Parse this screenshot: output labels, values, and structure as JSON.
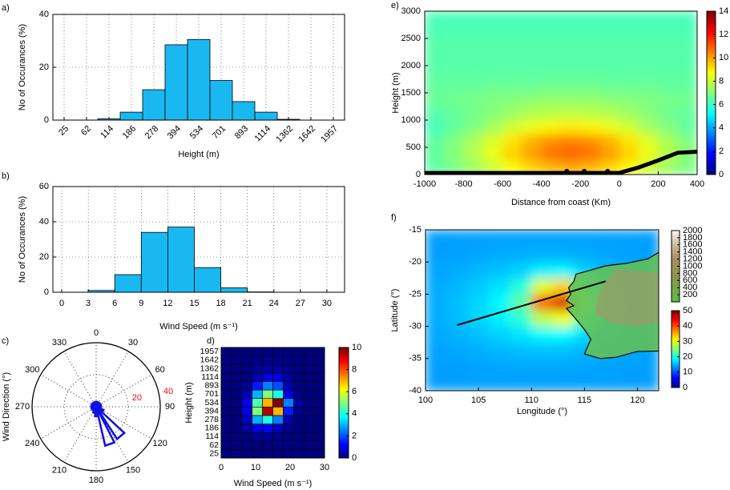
{
  "chart_data": [
    {
      "type": "bar",
      "label": "a)",
      "ylabel": "No of Occurances (%)",
      "xlabel": "Height (m)",
      "categories": [
        "25",
        "62",
        "114",
        "186",
        "278",
        "394",
        "534",
        "701",
        "893",
        "1114",
        "1362",
        "1642",
        "1957"
      ],
      "values": [
        0,
        0,
        0.5,
        3,
        11.5,
        28.5,
        30.5,
        15,
        7,
        3,
        0.3,
        0,
        0
      ],
      "ylim": [
        0,
        40
      ],
      "yticks": [
        0,
        20,
        40
      ],
      "grid": true,
      "color": "#1ab8f0"
    },
    {
      "type": "histogram",
      "label": "b)",
      "ylabel": "No of Occurances (%)",
      "xlabel": "Wind Speed (m s⁻¹)",
      "bins": [
        0,
        3,
        6,
        9,
        12,
        15,
        18,
        21,
        24,
        27,
        30
      ],
      "values": [
        0,
        1,
        10,
        34,
        37,
        14,
        2.5,
        0.2,
        0,
        0
      ],
      "xlim": [
        -1,
        32
      ],
      "xticks": [
        0,
        3,
        6,
        9,
        12,
        15,
        18,
        21,
        24,
        27,
        30
      ],
      "ylim": [
        0,
        60
      ],
      "yticks": [
        0,
        20,
        40,
        60
      ],
      "grid": true,
      "color": "#1ab8f0"
    },
    {
      "type": "polar",
      "label": "c)",
      "ylabel": "Wind Direction (°)",
      "directions": [
        0,
        20,
        40,
        60,
        80,
        100,
        120,
        140,
        160,
        180,
        200,
        220,
        240,
        260,
        280,
        300,
        320,
        340
      ],
      "values": [
        3,
        3,
        3,
        3,
        3,
        3,
        5,
        24,
        25,
        6,
        4,
        3,
        3,
        3,
        3,
        3,
        3,
        3
      ],
      "theta_ticks": [
        0,
        30,
        60,
        90,
        120,
        150,
        180,
        210,
        240,
        270,
        300,
        330
      ],
      "rlim": [
        0,
        40
      ],
      "rticks": [
        20,
        40
      ],
      "rtick_color": "#e01010",
      "color": "#1010e0"
    },
    {
      "type": "heatmap",
      "label": "d)",
      "xlabel": "Wind Speed (m s⁻¹)",
      "ylabel": "Height (m)",
      "x_bins": [
        0,
        3,
        6,
        9,
        12,
        15,
        18,
        21,
        24,
        27,
        30
      ],
      "y_categories": [
        "25",
        "62",
        "114",
        "186",
        "278",
        "394",
        "534",
        "701",
        "893",
        "1114",
        "1362",
        "1642",
        "1957"
      ],
      "z": [
        [
          0,
          0,
          0,
          0,
          0,
          0,
          0,
          0,
          0,
          0
        ],
        [
          0,
          0,
          0,
          0,
          0,
          0,
          0,
          0,
          0,
          0
        ],
        [
          0,
          0,
          0,
          0.2,
          0.2,
          0.1,
          0,
          0,
          0,
          0
        ],
        [
          0,
          0,
          0.3,
          1,
          1.2,
          0.6,
          0.1,
          0,
          0,
          0
        ],
        [
          0,
          0,
          0.6,
          3,
          4,
          2.5,
          0.5,
          0,
          0,
          0
        ],
        [
          0,
          0,
          1,
          5,
          9.5,
          7,
          1.5,
          0.2,
          0,
          0
        ],
        [
          0,
          0,
          1,
          4.5,
          7,
          10,
          2.5,
          0.3,
          0,
          0
        ],
        [
          0,
          0,
          0.5,
          3,
          5,
          4,
          1,
          0.1,
          0,
          0
        ],
        [
          0,
          0,
          0.2,
          1.5,
          2.5,
          2,
          0.5,
          0,
          0,
          0
        ],
        [
          0,
          0,
          0,
          0.5,
          1,
          1,
          0.3,
          0,
          0,
          0
        ],
        [
          0,
          0,
          0,
          0.2,
          0.3,
          0.3,
          0.1,
          0,
          0,
          0
        ],
        [
          0,
          0,
          0,
          0,
          0.1,
          0.1,
          0,
          0,
          0,
          0
        ],
        [
          0,
          0,
          0,
          0,
          0,
          0,
          0,
          0,
          0,
          0
        ]
      ],
      "xlim": [
        0,
        30
      ],
      "xticks": [
        0,
        10,
        20,
        30
      ],
      "clim": [
        0,
        10
      ],
      "cticks": [
        0,
        2,
        4,
        6,
        8,
        10
      ]
    },
    {
      "type": "contour",
      "label": "e)",
      "xlabel": "Distance from coast (Km)",
      "ylabel": "Height (m)",
      "x_edges": [
        -1000,
        -900,
        -800,
        -700,
        -600,
        -500,
        -400,
        -300,
        -200,
        -100,
        0,
        100,
        200,
        300,
        400
      ],
      "y_edges": [
        0,
        250,
        500,
        750,
        1000,
        1250,
        1500,
        1750,
        2000,
        2250,
        2500,
        2750,
        3000
      ],
      "z": [
        [
          6.5,
          6.9,
          7.4,
          8.0,
          8.7,
          9.3,
          9.7,
          9.9,
          9.7,
          9.3,
          8.7,
          8.0,
          7.4,
          6.9
        ],
        [
          6.6,
          7.1,
          7.7,
          8.5,
          9.4,
          10.1,
          10.7,
          10.9,
          10.7,
          10.1,
          9.4,
          8.5,
          7.7,
          7.1
        ],
        [
          6.5,
          7.0,
          7.6,
          8.3,
          9.1,
          9.8,
          10.3,
          10.5,
          10.3,
          9.8,
          9.1,
          8.3,
          7.6,
          7.0
        ],
        [
          6.2,
          6.6,
          7.0,
          7.5,
          8.1,
          8.5,
          8.9,
          9.0,
          8.9,
          8.5,
          8.1,
          7.5,
          7.0,
          6.6
        ],
        [
          6.4,
          6.6,
          6.8,
          7.1,
          7.4,
          7.7,
          7.8,
          7.9,
          7.8,
          7.7,
          7.4,
          7.1,
          6.8,
          6.6
        ],
        [
          6.7,
          6.8,
          6.9,
          7.0,
          7.1,
          7.2,
          7.3,
          7.3,
          7.3,
          7.2,
          7.1,
          7.0,
          6.9,
          6.8
        ],
        [
          6.6,
          6.6,
          6.6,
          6.7,
          6.7,
          6.7,
          6.8,
          6.8,
          6.8,
          6.7,
          6.7,
          6.7,
          6.6,
          6.6
        ],
        [
          6.5,
          6.5,
          6.5,
          6.5,
          6.5,
          6.5,
          6.5,
          6.5,
          6.5,
          6.5,
          6.5,
          6.5,
          6.5,
          6.5
        ],
        [
          6.4,
          6.4,
          6.4,
          6.4,
          6.4,
          6.4,
          6.4,
          6.4,
          6.4,
          6.4,
          6.4,
          6.4,
          6.4,
          6.4
        ],
        [
          6.4,
          6.4,
          6.4,
          6.4,
          6.4,
          6.4,
          6.4,
          6.4,
          6.4,
          6.4,
          6.4,
          6.4,
          6.4,
          6.4
        ],
        [
          6.3,
          6.3,
          6.3,
          6.3,
          6.3,
          6.3,
          6.3,
          6.3,
          6.3,
          6.3,
          6.3,
          6.3,
          6.3,
          6.3
        ],
        [
          6.2,
          6.2,
          6.2,
          6.2,
          6.2,
          6.2,
          6.2,
          6.2,
          6.2,
          6.2,
          6.2,
          6.2,
          6.2,
          6.2
        ]
      ],
      "xlim": [
        -1000,
        400
      ],
      "xticks": [
        -1000,
        -800,
        -600,
        -400,
        -200,
        0,
        200,
        400
      ],
      "ylim": [
        0,
        3000
      ],
      "yticks": [
        0,
        500,
        1000,
        1500,
        2000,
        2500,
        3000
      ],
      "clim": [
        0,
        14
      ],
      "cticks": [
        0,
        2,
        4,
        6,
        8,
        10,
        12,
        14
      ],
      "terrain": {
        "x": [
          -1000,
          0,
          100,
          200,
          300,
          400
        ],
        "y": [
          30,
          30,
          130,
          260,
          400,
          420
        ]
      },
      "stations": {
        "x": [
          -270,
          -180,
          -60
        ],
        "y": [
          60,
          60,
          60
        ]
      }
    },
    {
      "type": "map",
      "label": "f)",
      "xlabel": "Longitude (°)",
      "ylabel": "Latitude (°)",
      "lon_edges": [
        100,
        102,
        104,
        106,
        108,
        110,
        112,
        114,
        116,
        118,
        120,
        122
      ],
      "lat_edges": [
        -40,
        -37.5,
        -35,
        -32.5,
        -30,
        -27.5,
        -25,
        -22.5,
        -20,
        -17.5,
        -15
      ],
      "z": [
        [
          14.0,
          14.0,
          14.1,
          14.1,
          14.1,
          14.1,
          14.1,
          14.1,
          14.1,
          14.0,
          14.0
        ],
        [
          14.1,
          14.1,
          14.3,
          14.4,
          14.5,
          14.5,
          14.5,
          14.4,
          14.3,
          14.1,
          14.1
        ],
        [
          14.2,
          14.5,
          14.8,
          15.2,
          15.6,
          15.7,
          15.6,
          15.2,
          14.8,
          14.5,
          14.2
        ],
        [
          14.5,
          15.0,
          15.7,
          16.6,
          17.5,
          18.6,
          18.7,
          17.1,
          15.8,
          15.0,
          14.5
        ],
        [
          14.7,
          15.5,
          16.7,
          18.1,
          20.8,
          27.9,
          30.6,
          22.4,
          17.1,
          15.5,
          14.7
        ],
        [
          14.8,
          15.6,
          16.8,
          18.5,
          23.3,
          39.3,
          46.0,
          28.4,
          17.9,
          15.6,
          14.8
        ],
        [
          14.6,
          15.2,
          16.2,
          17.4,
          20.4,
          29.7,
          33.4,
          23.1,
          16.8,
          15.2,
          14.6
        ],
        [
          14.3,
          14.6,
          15.2,
          15.8,
          16.5,
          18.0,
          18.4,
          16.6,
          15.2,
          14.7,
          14.3
        ],
        [
          14.1,
          14.2,
          14.4,
          14.6,
          14.8,
          14.9,
          14.8,
          14.6,
          14.4,
          14.2,
          14.1
        ],
        [
          14.0,
          14.1,
          14.1,
          14.2,
          14.2,
          14.2,
          14.2,
          14.2,
          14.1,
          14.1,
          14.0
        ]
      ],
      "xlim": [
        100,
        122
      ],
      "xticks": [
        100,
        105,
        110,
        115,
        120
      ],
      "ylim": [
        -40,
        -15
      ],
      "yticks": [
        -40,
        -35,
        -30,
        -25,
        -20,
        -15
      ],
      "clim": [
        0,
        50
      ],
      "cticks": [
        0,
        10,
        20,
        30,
        40,
        50
      ],
      "terrain_clim": [
        0,
        2000
      ],
      "terrain_cticks": [
        200,
        400,
        600,
        800,
        1000,
        1200,
        1400,
        1600,
        1800,
        2000
      ],
      "transect": {
        "lon": [
          103,
          117
        ],
        "lat": [
          -29.8,
          -23
        ]
      }
    }
  ]
}
